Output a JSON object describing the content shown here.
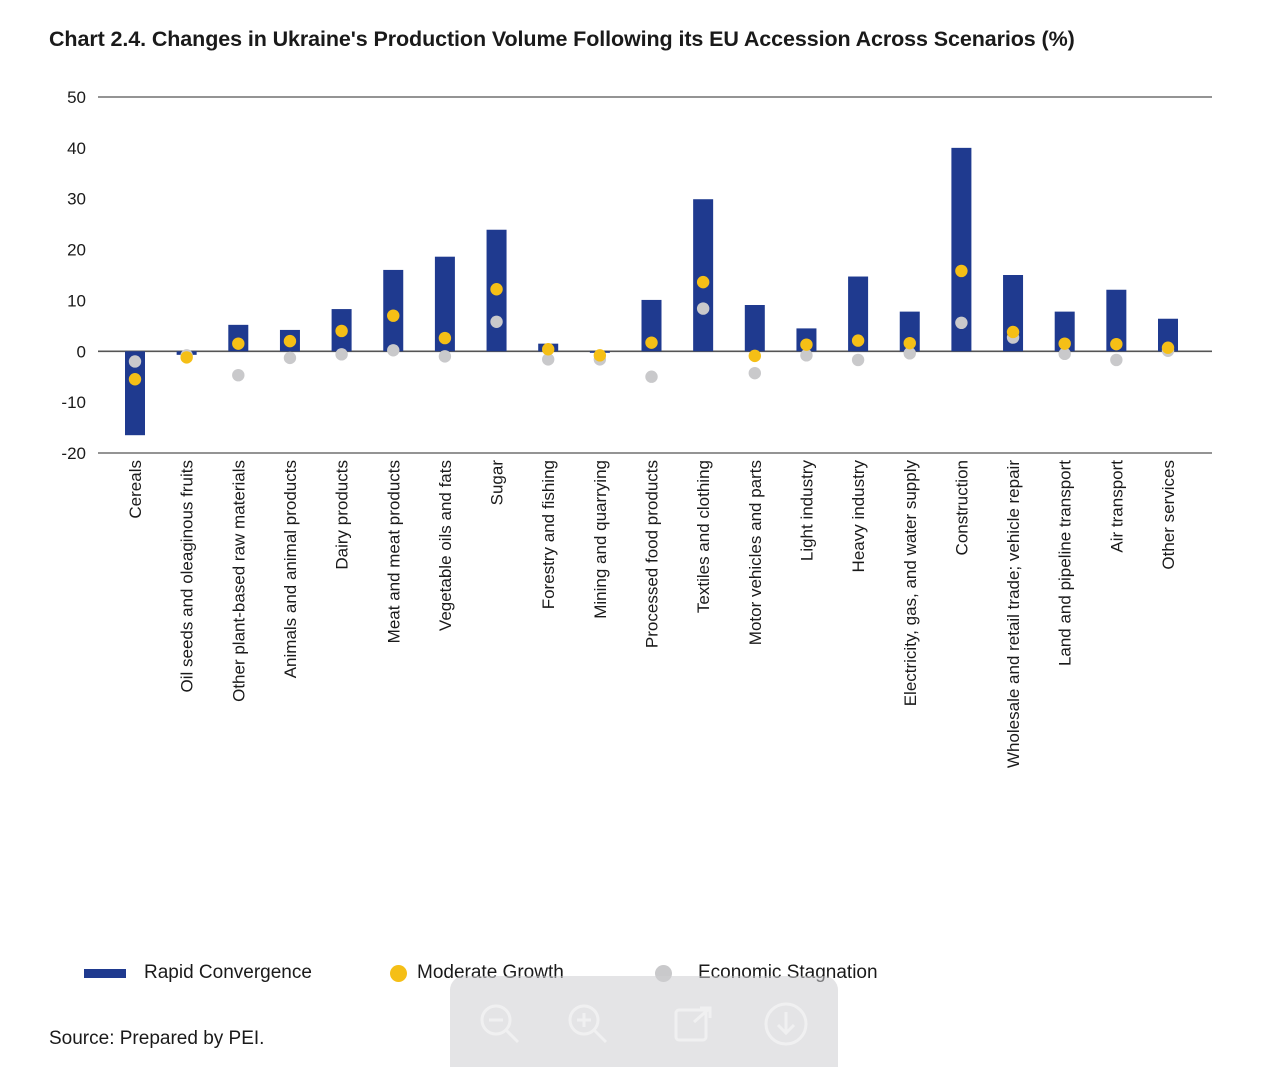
{
  "title": "Chart 2.4.  Changes in Ukraine's Production Volume Following its EU Accession Across Scenarios (%)",
  "source": "Source: Prepared by PEI.",
  "colors": {
    "rapid": "#1f3a8f",
    "moderate": "#f5bf16",
    "stagnation": "#c9c9cb",
    "axis": "#555555"
  },
  "legend": {
    "rapid_label": "Rapid Convergence",
    "moderate_label": "Moderate Growth",
    "stagnation_label": "Economic Stagnation"
  },
  "toolbar": {
    "buttons": [
      "zoom-out-icon",
      "zoom-in-icon",
      "share-icon",
      "download-icon"
    ]
  },
  "chart_data": {
    "type": "bar",
    "ylim": [
      -20,
      50
    ],
    "yticks": [
      50,
      40,
      30,
      20,
      10,
      0,
      -10,
      -20
    ],
    "legend_position": "bottom",
    "categories": [
      "Cereals",
      "Oil seeds and oleaginous fruits",
      "Other plant-based raw materials",
      "Animals and animal products",
      "Dairy products",
      "Meat and meat products",
      "Vegetable oils and fats",
      "Sugar",
      "Forestry and fishing",
      "Mining and quarrying",
      "Processed food products",
      "Textiles and clothing",
      "Motor vehicles and parts",
      "Light industry",
      "Heavy industry",
      "Electricity, gas, and water supply",
      "Construction",
      "Wholesale and retail trade; vehicle repair",
      "Land and pipeline transport",
      "Air transport",
      "Other services"
    ],
    "series": [
      {
        "name": "Rapid Convergence",
        "mark": "bar",
        "values": [
          -16.5,
          -0.7,
          5.2,
          4.2,
          8.3,
          16,
          18.6,
          23.9,
          1.5,
          -0.3,
          10.1,
          29.9,
          9.1,
          4.5,
          14.7,
          7.8,
          40,
          15,
          7.8,
          12.1,
          6.4
        ]
      },
      {
        "name": "Moderate Growth",
        "mark": "dot",
        "values": [
          -5.5,
          -1.2,
          1.5,
          2,
          4,
          7,
          2.6,
          12.2,
          0.4,
          -0.8,
          1.7,
          13.6,
          -0.9,
          1.3,
          2.1,
          1.6,
          15.8,
          3.8,
          1.5,
          1.4,
          0.7
        ]
      },
      {
        "name": "Economic Stagnation",
        "mark": "dot",
        "values": [
          -2,
          -0.8,
          -4.7,
          -1.3,
          -0.6,
          0.2,
          -1,
          5.8,
          -1.6,
          -1.6,
          -5,
          8.4,
          -4.3,
          -0.8,
          -1.7,
          -0.4,
          5.6,
          2.7,
          -0.5,
          -1.7,
          0.1
        ]
      }
    ]
  }
}
